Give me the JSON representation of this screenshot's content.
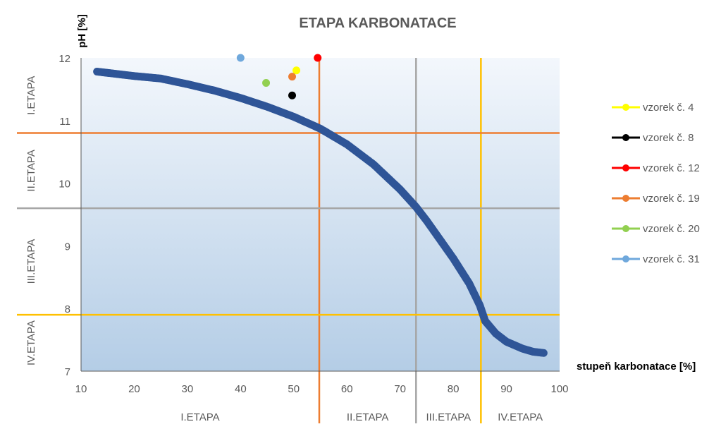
{
  "chart_data": {
    "type": "scatter",
    "title": "ETAPA KARBONATACE",
    "xlabel": "stupeň karbonatace [%]",
    "ylabel": "pH [%]",
    "xlim": [
      10,
      100
    ],
    "ylim": [
      7,
      12
    ],
    "x_ticks": [
      "10",
      "20",
      "30",
      "40",
      "50",
      "60",
      "70",
      "80",
      "90",
      "100"
    ],
    "y_ticks": [
      "7",
      "8",
      "9",
      "10",
      "11",
      "12"
    ],
    "grid": false,
    "legend_position": "right",
    "curve": {
      "color": "#2F5597",
      "points": [
        [
          13,
          11.78
        ],
        [
          15,
          11.76
        ],
        [
          18,
          11.73
        ],
        [
          20,
          11.71
        ],
        [
          25,
          11.67
        ],
        [
          30,
          11.58
        ],
        [
          35,
          11.48
        ],
        [
          40,
          11.36
        ],
        [
          45,
          11.22
        ],
        [
          50,
          11.06
        ],
        [
          55,
          10.87
        ],
        [
          60,
          10.62
        ],
        [
          65,
          10.3
        ],
        [
          70,
          9.9
        ],
        [
          73,
          9.62
        ],
        [
          75,
          9.4
        ],
        [
          80,
          8.8
        ],
        [
          83,
          8.4
        ],
        [
          85,
          8.05
        ],
        [
          86,
          7.8
        ],
        [
          88,
          7.6
        ],
        [
          90,
          7.47
        ],
        [
          93,
          7.36
        ],
        [
          95,
          7.31
        ],
        [
          97,
          7.29
        ]
      ]
    },
    "series": [
      {
        "name": "vzorek č. 4",
        "color": "#FFFF00",
        "x": 50.5,
        "y": 11.8
      },
      {
        "name": "vzorek č. 8",
        "color": "#000000",
        "x": 49.7,
        "y": 11.4
      },
      {
        "name": "vzorek č. 12",
        "color": "#FF0000",
        "x": 54.5,
        "y": 12.0
      },
      {
        "name": "vzorek č. 19",
        "color": "#ED7D31",
        "x": 49.7,
        "y": 11.7
      },
      {
        "name": "vzorek č. 20",
        "color": "#92D050",
        "x": 44.8,
        "y": 11.6
      },
      {
        "name": "vzorek č. 31",
        "color": "#6FA8DC",
        "x": 40.0,
        "y": 12.0
      }
    ],
    "vertical_lines": [
      {
        "x": 54.8,
        "color": "#ED7D31"
      },
      {
        "x": 73.0,
        "color": "#A6A6A6"
      },
      {
        "x": 85.2,
        "color": "#FFC000"
      }
    ],
    "horizontal_lines": [
      {
        "y": 10.8,
        "color": "#ED7D31"
      },
      {
        "y": 9.6,
        "color": "#A6A6A6"
      },
      {
        "y": 7.9,
        "color": "#FFC000"
      }
    ],
    "x_stages": [
      {
        "label": "I.ETAPA",
        "from": 10,
        "to": 54.8
      },
      {
        "label": "II.ETAPA",
        "from": 54.8,
        "to": 73.0
      },
      {
        "label": "III.ETAPA",
        "from": 73.0,
        "to": 85.2
      },
      {
        "label": "IV.ETAPA",
        "from": 85.2,
        "to": 100
      }
    ],
    "y_stages": [
      {
        "label": "I.ETAPA",
        "from": 10.8,
        "to": 12
      },
      {
        "label": "II.ETAPA",
        "from": 9.6,
        "to": 10.8
      },
      {
        "label": "III.ETAPA",
        "from": 7.9,
        "to": 9.6
      },
      {
        "label": "IV.ETAPA",
        "from": 7,
        "to": 7.9
      }
    ]
  }
}
